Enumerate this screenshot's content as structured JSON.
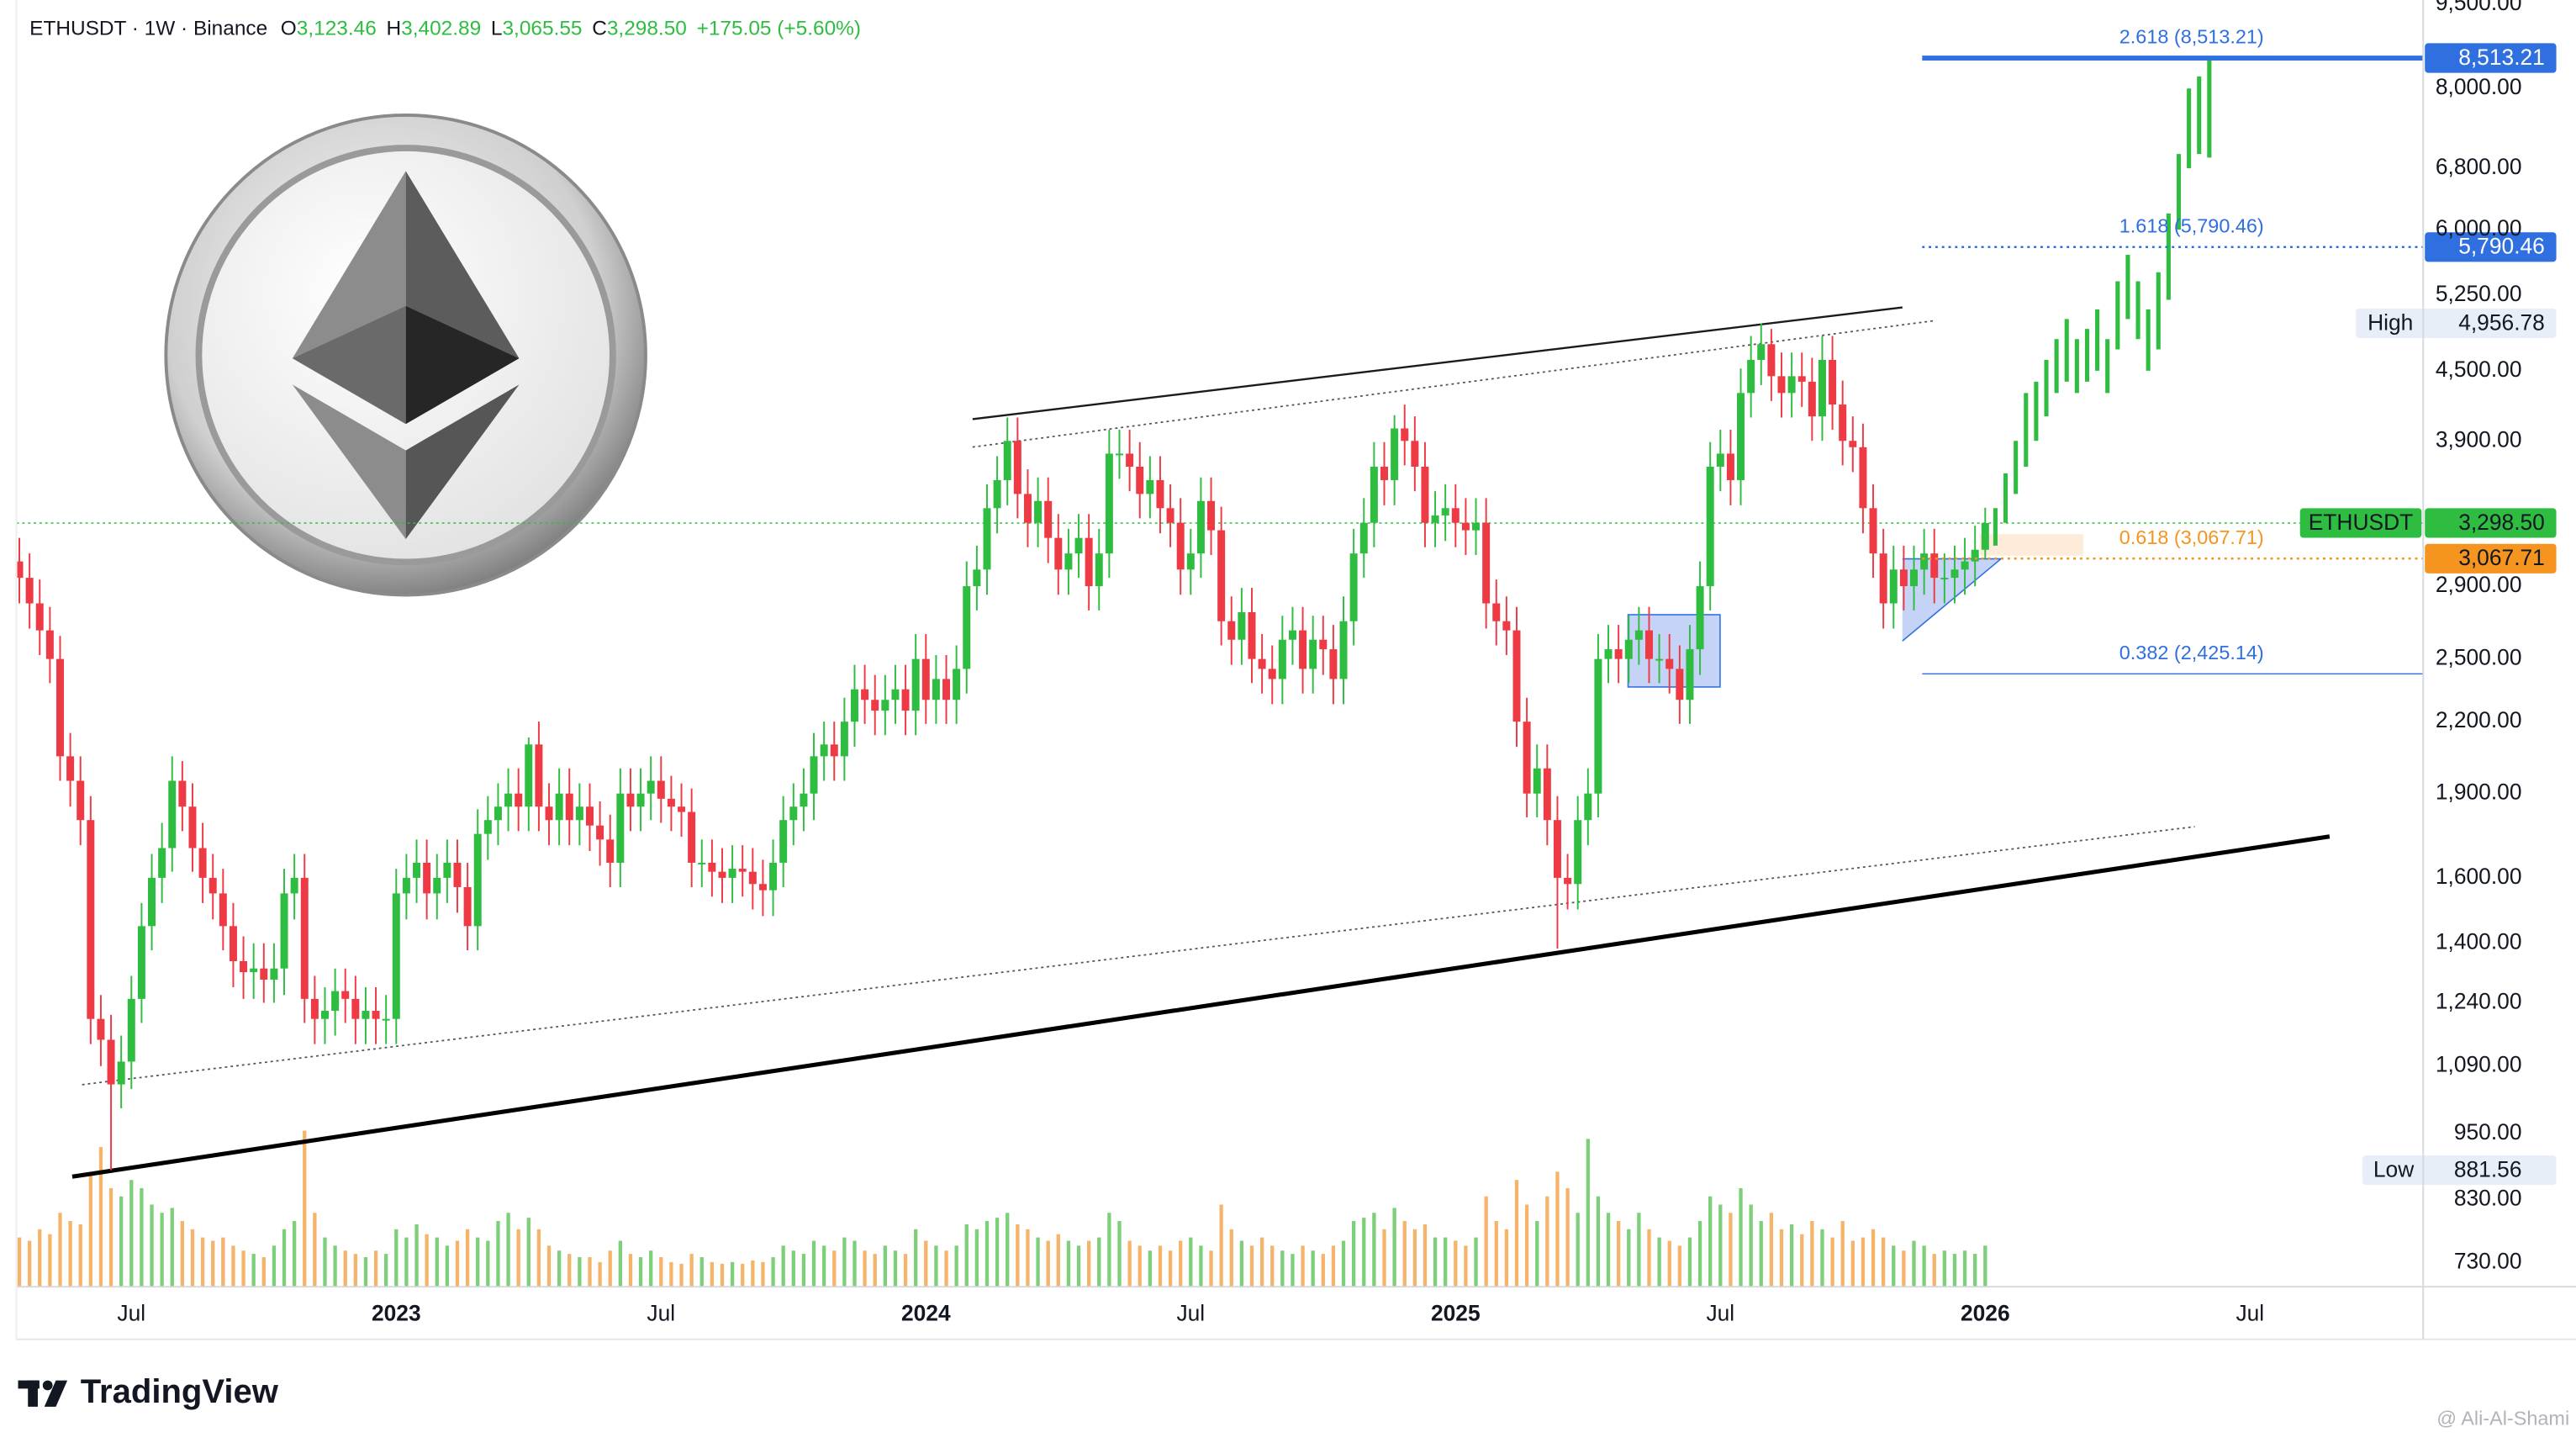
{
  "chart_data": {
    "type": "candlestick",
    "title": "ETHUSDT · 1W · Binance",
    "header": {
      "items": [
        [
          "O",
          "3,123.46"
        ],
        [
          "H",
          "3,402.89"
        ],
        [
          "L",
          "3,065.55"
        ],
        [
          "C",
          "3,298.50"
        ]
      ],
      "change": "+175.05 (+5.60%)"
    },
    "log_scale": true,
    "ylim": [
      695,
      9580
    ],
    "yticks": [
      {
        "value": 730,
        "label": "730.00"
      },
      {
        "value": 830,
        "label": "830.00"
      },
      {
        "value": 950,
        "label": "950.00"
      },
      {
        "value": 1090,
        "label": "1,090.00"
      },
      {
        "value": 1240,
        "label": "1,240.00"
      },
      {
        "value": 1400,
        "label": "1,400.00"
      },
      {
        "value": 1600,
        "label": "1,600.00"
      },
      {
        "value": 1900,
        "label": "1,900.00"
      },
      {
        "value": 2200,
        "label": "2,200.00"
      },
      {
        "value": 2500,
        "label": "2,500.00"
      },
      {
        "value": 2900,
        "label": "2,900.00"
      },
      {
        "value": 3900,
        "label": "3,900.00"
      },
      {
        "value": 4500,
        "label": "4,500.00"
      },
      {
        "value": 5250,
        "label": "5,250.00"
      },
      {
        "value": 6000,
        "label": "6,000.00"
      },
      {
        "value": 6800,
        "label": "6,800.00"
      },
      {
        "value": 8000,
        "label": "8,000.00"
      },
      {
        "value": 9500,
        "label": "9,500.00"
      }
    ],
    "xlim": [
      -1.9,
      236
    ],
    "xticks": [
      {
        "value": 11,
        "label": "Jul"
      },
      {
        "value": 37,
        "label": "2023"
      },
      {
        "value": 63,
        "label": "Jul"
      },
      {
        "value": 89,
        "label": "2024"
      },
      {
        "value": 115,
        "label": "Jul"
      },
      {
        "value": 141,
        "label": "2025"
      },
      {
        "value": 167,
        "label": "Jul"
      },
      {
        "value": 193,
        "label": "2026"
      },
      {
        "value": 219,
        "label": "Jul"
      }
    ],
    "up_color": "#2ebd41",
    "down_color": "#ee3a44",
    "volume_up_color": "#7dcf7a",
    "volume_down_color": "#f5b46a",
    "open": [
      3050,
      2950,
      2800,
      2650,
      2500,
      2050,
      1950,
      1800,
      1200,
      1150,
      1050,
      1100,
      1250,
      1450,
      1600,
      1700,
      1950,
      1850,
      1700,
      1600,
      1550,
      1450,
      1350,
      1320,
      1330,
      1300,
      1330,
      1550,
      1600,
      1250,
      1200,
      1220,
      1270,
      1250,
      1200,
      1220,
      1200,
      1200,
      1550,
      1600,
      1650,
      1550,
      1600,
      1650,
      1570,
      1450,
      1750,
      1800,
      1850,
      1900,
      1850,
      2100,
      1850,
      1800,
      1900,
      1800,
      1850,
      1780,
      1730,
      1650,
      1900,
      1850,
      1900,
      1950,
      1880,
      1850,
      1830,
      1650,
      1650,
      1620,
      1600,
      1630,
      1620,
      1580,
      1560,
      1650,
      1800,
      1850,
      1900,
      2050,
      2100,
      2050,
      2200,
      2350,
      2300,
      2250,
      2300,
      2350,
      2250,
      2500,
      2300,
      2400,
      2300,
      2450,
      2900,
      3000,
      3400,
      3600,
      3900,
      3500,
      3300,
      3450,
      3200,
      3000,
      3100,
      3200,
      2900,
      3100,
      3800,
      3800,
      3700,
      3500,
      3600,
      3400,
      3300,
      3000,
      3100,
      3450,
      3250,
      2700,
      2600,
      2750,
      2500,
      2450,
      2400,
      2600,
      2650,
      2450,
      2600,
      2550,
      2400,
      2700,
      3100,
      3300,
      3700,
      3600,
      4000,
      3900,
      3700,
      3300,
      3350,
      3400,
      3300,
      3250,
      3300,
      2800,
      2700,
      2650,
      2200,
      1900,
      2000,
      1800,
      1600,
      1580,
      1800,
      1900,
      2500,
      2550,
      2500,
      2600,
      2650,
      2500,
      2500,
      2450,
      2300,
      2550,
      2900,
      3700,
      3800,
      3600,
      4300,
      4600,
      4750,
      4450,
      4300,
      4450,
      4400,
      4100,
      4600,
      4200,
      3900,
      3850,
      3400,
      3100,
      2800,
      3000,
      2900,
      3000,
      3100,
      2950,
      2950,
      3000,
      3050,
      3123.46
    ],
    "high": [
      3200,
      3100,
      2940,
      2780,
      2620,
      2150,
      2050,
      1890,
      1260,
      1210,
      1160,
      1310,
      1520,
      1680,
      1790,
      2050,
      2030,
      1940,
      1790,
      1680,
      1630,
      1520,
      1420,
      1400,
      1400,
      1400,
      1630,
      1680,
      1680,
      1310,
      1280,
      1330,
      1330,
      1310,
      1280,
      1280,
      1260,
      1630,
      1680,
      1730,
      1730,
      1680,
      1730,
      1730,
      1650,
      1840,
      1890,
      1940,
      2000,
      2000,
      2130,
      2200,
      1940,
      2000,
      2000,
      1940,
      1940,
      1870,
      1820,
      2000,
      2000,
      2000,
      2050,
      2050,
      1970,
      1940,
      1920,
      1730,
      1730,
      1700,
      1710,
      1710,
      1700,
      1660,
      1730,
      1890,
      1940,
      2000,
      2150,
      2200,
      2200,
      2310,
      2470,
      2470,
      2420,
      2420,
      2470,
      2470,
      2630,
      2630,
      2520,
      2520,
      2570,
      3050,
      3150,
      3570,
      3780,
      4090,
      4090,
      3680,
      3620,
      3620,
      3360,
      3260,
      3360,
      3360,
      3260,
      3990,
      3990,
      3990,
      3890,
      3780,
      3780,
      3570,
      3470,
      3260,
      3620,
      3620,
      3410,
      2840,
      2890,
      2890,
      2630,
      2570,
      2730,
      2780,
      2780,
      2730,
      2730,
      2680,
      2840,
      3260,
      3470,
      3890,
      3890,
      4110,
      4200,
      4100,
      3890,
      3520,
      3570,
      3570,
      3470,
      3470,
      3470,
      2940,
      2840,
      2780,
      2310,
      2100,
      2100,
      1890,
      1680,
      1890,
      2000,
      2630,
      2680,
      2680,
      2730,
      2780,
      2780,
      2630,
      2630,
      2570,
      2680,
      3050,
      3890,
      3990,
      3990,
      4520,
      4830,
      4956.78,
      4900,
      4670,
      4670,
      4670,
      4620,
      4830,
      4830,
      4410,
      4100,
      4040,
      3570,
      3260,
      3150,
      3150,
      3150,
      3260,
      3260,
      3100,
      3150,
      3200,
      3280,
      3402.89
    ],
    "low": [
      2800,
      2660,
      2520,
      2380,
      1950,
      1850,
      1710,
      1140,
      1090,
      881.56,
      1000,
      1040,
      1190,
      1380,
      1520,
      1620,
      1760,
      1620,
      1520,
      1470,
      1380,
      1280,
      1250,
      1250,
      1240,
      1240,
      1260,
      1470,
      1190,
      1140,
      1140,
      1160,
      1190,
      1140,
      1140,
      1140,
      1140,
      1140,
      1470,
      1520,
      1470,
      1470,
      1520,
      1490,
      1380,
      1380,
      1660,
      1710,
      1760,
      1760,
      1760,
      1760,
      1710,
      1710,
      1710,
      1710,
      1690,
      1640,
      1570,
      1570,
      1760,
      1760,
      1800,
      1790,
      1760,
      1740,
      1570,
      1570,
      1540,
      1520,
      1520,
      1540,
      1500,
      1480,
      1480,
      1570,
      1710,
      1760,
      1800,
      1950,
      1950,
      1950,
      2090,
      2190,
      2140,
      2140,
      2190,
      2140,
      2140,
      2190,
      2190,
      2190,
      2190,
      2330,
      2760,
      2850,
      3230,
      3420,
      3330,
      3140,
      3140,
      3040,
      2850,
      2850,
      2950,
      2760,
      2760,
      2950,
      3610,
      3520,
      3330,
      3330,
      3230,
      3140,
      2850,
      2850,
      2950,
      3090,
      2570,
      2470,
      2470,
      2380,
      2330,
      2280,
      2280,
      2470,
      2330,
      2330,
      2420,
      2280,
      2280,
      2570,
      2950,
      3140,
      3420,
      3420,
      3710,
      3520,
      3140,
      3140,
      3180,
      3140,
      3090,
      3090,
      2660,
      2570,
      2520,
      2090,
      1810,
      1810,
      1710,
      1385,
      1500,
      1500,
      1710,
      1810,
      2380,
      2380,
      2380,
      2470,
      2380,
      2380,
      2330,
      2190,
      2190,
      2420,
      2760,
      3520,
      3420,
      3420,
      4090,
      4370,
      4230,
      4090,
      4090,
      4180,
      3900,
      3900,
      3990,
      3710,
      3660,
      3230,
      2950,
      2660,
      2660,
      2760,
      2760,
      2850,
      2800,
      2800,
      2800,
      2850,
      2900,
      3065.55
    ],
    "close": [
      2950,
      2800,
      2650,
      2500,
      2050,
      1950,
      1800,
      1200,
      1150,
      1050,
      1100,
      1250,
      1450,
      1600,
      1700,
      1950,
      1850,
      1700,
      1600,
      1550,
      1450,
      1350,
      1320,
      1330,
      1300,
      1330,
      1550,
      1600,
      1250,
      1200,
      1220,
      1270,
      1250,
      1200,
      1220,
      1200,
      1200,
      1550,
      1600,
      1650,
      1550,
      1600,
      1650,
      1570,
      1450,
      1750,
      1800,
      1850,
      1900,
      1850,
      2100,
      1850,
      1800,
      1900,
      1800,
      1850,
      1780,
      1730,
      1650,
      1900,
      1850,
      1900,
      1950,
      1880,
      1850,
      1830,
      1650,
      1650,
      1620,
      1600,
      1630,
      1620,
      1580,
      1560,
      1650,
      1800,
      1850,
      1900,
      2050,
      2100,
      2050,
      2200,
      2350,
      2300,
      2250,
      2300,
      2350,
      2250,
      2500,
      2300,
      2400,
      2300,
      2450,
      2900,
      3000,
      3400,
      3600,
      3900,
      3500,
      3300,
      3450,
      3200,
      3000,
      3100,
      3200,
      2900,
      3100,
      3800,
      3800,
      3700,
      3500,
      3600,
      3400,
      3300,
      3000,
      3100,
      3450,
      3250,
      2700,
      2600,
      2750,
      2500,
      2450,
      2400,
      2600,
      2650,
      2450,
      2600,
      2550,
      2400,
      2700,
      3100,
      3300,
      3700,
      3600,
      4000,
      3900,
      3700,
      3300,
      3350,
      3400,
      3300,
      3250,
      3300,
      2800,
      2700,
      2650,
      2200,
      1900,
      2000,
      1800,
      1600,
      1580,
      1800,
      1900,
      2500,
      2550,
      2500,
      2600,
      2650,
      2500,
      2500,
      2450,
      2300,
      2550,
      2900,
      3700,
      3800,
      3600,
      4300,
      4600,
      4750,
      4450,
      4300,
      4450,
      4400,
      4100,
      4600,
      4200,
      3900,
      3850,
      3400,
      3100,
      2800,
      3000,
      2900,
      3000,
      3100,
      2950,
      2950,
      3000,
      3050,
      3123.46,
      3298.5
    ],
    "volume": [
      30,
      28,
      35,
      32,
      45,
      40,
      38,
      70,
      85,
      60,
      55,
      65,
      60,
      50,
      45,
      48,
      40,
      35,
      30,
      28,
      30,
      25,
      22,
      20,
      18,
      25,
      35,
      40,
      95,
      45,
      30,
      25,
      22,
      20,
      18,
      22,
      20,
      35,
      30,
      38,
      32,
      30,
      25,
      28,
      35,
      30,
      28,
      40,
      45,
      35,
      42,
      35,
      25,
      22,
      20,
      18,
      18,
      15,
      22,
      28,
      20,
      18,
      22,
      18,
      15,
      14,
      20,
      18,
      15,
      14,
      15,
      14,
      16,
      15,
      18,
      25,
      22,
      20,
      28,
      25,
      22,
      30,
      28,
      22,
      20,
      25,
      22,
      20,
      35,
      28,
      25,
      22,
      25,
      38,
      35,
      40,
      42,
      45,
      38,
      35,
      30,
      28,
      32,
      28,
      25,
      28,
      30,
      45,
      40,
      28,
      25,
      22,
      25,
      22,
      28,
      30,
      25,
      22,
      50,
      35,
      28,
      25,
      30,
      25,
      22,
      20,
      25,
      22,
      20,
      25,
      28,
      40,
      42,
      45,
      35,
      48,
      40,
      35,
      38,
      30,
      30,
      28,
      25,
      30,
      55,
      40,
      35,
      65,
      50,
      40,
      55,
      70,
      60,
      45,
      90,
      55,
      45,
      40,
      35,
      45,
      35,
      30,
      28,
      25,
      30,
      40,
      55,
      50,
      45,
      60,
      50,
      40,
      45,
      35,
      38,
      32,
      40,
      35,
      30,
      40,
      28,
      30,
      35,
      30,
      25,
      22,
      28,
      25,
      20,
      22,
      20,
      22,
      20,
      25
    ],
    "projection": {
      "color": "#2ebd41",
      "low": [
        3150,
        3300,
        3500,
        3700,
        3900,
        4100,
        4300,
        4400,
        4300,
        4400,
        4500,
        4300,
        4700,
        5000,
        4800,
        4500,
        4700,
        5200,
        6000,
        6800,
        7000,
        6950
      ],
      "high": [
        3400,
        3650,
        3900,
        4300,
        4400,
        4600,
        4800,
        5000,
        4800,
        4900,
        5100,
        4800,
        5400,
        5700,
        5400,
        5100,
        5500,
        6200,
        7000,
        8000,
        8200,
        8513.21
      ]
    },
    "fib_levels": [
      {
        "value": 8513.21,
        "label": "2.618 (8,513.21)",
        "tag": "8,513.21",
        "color": "#2f6fe0",
        "style": "solid-thick"
      },
      {
        "value": 5790.46,
        "label": "1.618 (5,790.46)",
        "tag": "5,790.46",
        "color": "#2f6fe0",
        "style": "dotted"
      },
      {
        "value": 3067.71,
        "label": "0.618 (3,067.71)",
        "tag": "3,067.71",
        "color": "#f5941e",
        "style": "dotted"
      },
      {
        "value": 2425.14,
        "label": "0.382 (2,425.14)",
        "color": "#2f6fe0",
        "style": "thin"
      }
    ],
    "last_price": {
      "name": "ETHUSDT",
      "value": 3298.5,
      "label": "3,298.50",
      "color": "#2ebd41"
    },
    "high_marker": {
      "name": "High",
      "value": 4956.78,
      "label": "4,956.78"
    },
    "low_marker": {
      "name": "Low",
      "value": 881.56
    }
  },
  "branding": {
    "logo_text": "TradingView",
    "watermark": "@ Ali-Al-Shami"
  }
}
